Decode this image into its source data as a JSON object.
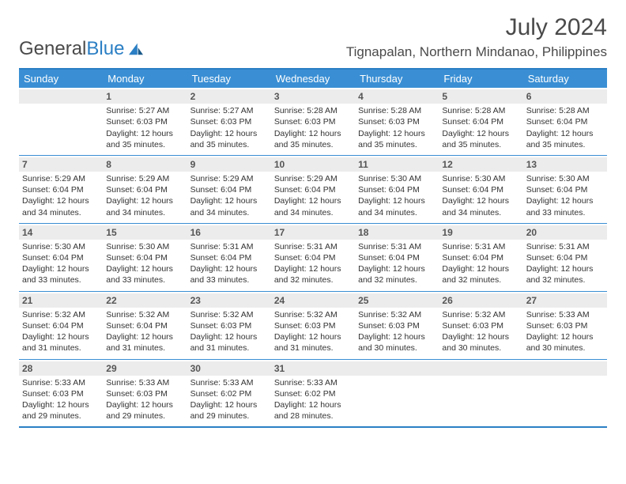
{
  "logo": {
    "text_grey": "General",
    "text_blue": "Blue"
  },
  "title": "July 2024",
  "location": "Tignapalan, Northern Mindanao, Philippines",
  "colors": {
    "header_bar": "#3a8fd4",
    "border": "#2b7fc4",
    "daynum_bg": "#ececec",
    "text": "#333333",
    "title_text": "#4a4a4a"
  },
  "weekdays": [
    "Sunday",
    "Monday",
    "Tuesday",
    "Wednesday",
    "Thursday",
    "Friday",
    "Saturday"
  ],
  "weeks": [
    [
      {
        "day": "",
        "sunrise": "",
        "sunset": "",
        "daylight": ""
      },
      {
        "day": "1",
        "sunrise": "Sunrise: 5:27 AM",
        "sunset": "Sunset: 6:03 PM",
        "daylight": "Daylight: 12 hours and 35 minutes."
      },
      {
        "day": "2",
        "sunrise": "Sunrise: 5:27 AM",
        "sunset": "Sunset: 6:03 PM",
        "daylight": "Daylight: 12 hours and 35 minutes."
      },
      {
        "day": "3",
        "sunrise": "Sunrise: 5:28 AM",
        "sunset": "Sunset: 6:03 PM",
        "daylight": "Daylight: 12 hours and 35 minutes."
      },
      {
        "day": "4",
        "sunrise": "Sunrise: 5:28 AM",
        "sunset": "Sunset: 6:03 PM",
        "daylight": "Daylight: 12 hours and 35 minutes."
      },
      {
        "day": "5",
        "sunrise": "Sunrise: 5:28 AM",
        "sunset": "Sunset: 6:04 PM",
        "daylight": "Daylight: 12 hours and 35 minutes."
      },
      {
        "day": "6",
        "sunrise": "Sunrise: 5:28 AM",
        "sunset": "Sunset: 6:04 PM",
        "daylight": "Daylight: 12 hours and 35 minutes."
      }
    ],
    [
      {
        "day": "7",
        "sunrise": "Sunrise: 5:29 AM",
        "sunset": "Sunset: 6:04 PM",
        "daylight": "Daylight: 12 hours and 34 minutes."
      },
      {
        "day": "8",
        "sunrise": "Sunrise: 5:29 AM",
        "sunset": "Sunset: 6:04 PM",
        "daylight": "Daylight: 12 hours and 34 minutes."
      },
      {
        "day": "9",
        "sunrise": "Sunrise: 5:29 AM",
        "sunset": "Sunset: 6:04 PM",
        "daylight": "Daylight: 12 hours and 34 minutes."
      },
      {
        "day": "10",
        "sunrise": "Sunrise: 5:29 AM",
        "sunset": "Sunset: 6:04 PM",
        "daylight": "Daylight: 12 hours and 34 minutes."
      },
      {
        "day": "11",
        "sunrise": "Sunrise: 5:30 AM",
        "sunset": "Sunset: 6:04 PM",
        "daylight": "Daylight: 12 hours and 34 minutes."
      },
      {
        "day": "12",
        "sunrise": "Sunrise: 5:30 AM",
        "sunset": "Sunset: 6:04 PM",
        "daylight": "Daylight: 12 hours and 34 minutes."
      },
      {
        "day": "13",
        "sunrise": "Sunrise: 5:30 AM",
        "sunset": "Sunset: 6:04 PM",
        "daylight": "Daylight: 12 hours and 33 minutes."
      }
    ],
    [
      {
        "day": "14",
        "sunrise": "Sunrise: 5:30 AM",
        "sunset": "Sunset: 6:04 PM",
        "daylight": "Daylight: 12 hours and 33 minutes."
      },
      {
        "day": "15",
        "sunrise": "Sunrise: 5:30 AM",
        "sunset": "Sunset: 6:04 PM",
        "daylight": "Daylight: 12 hours and 33 minutes."
      },
      {
        "day": "16",
        "sunrise": "Sunrise: 5:31 AM",
        "sunset": "Sunset: 6:04 PM",
        "daylight": "Daylight: 12 hours and 33 minutes."
      },
      {
        "day": "17",
        "sunrise": "Sunrise: 5:31 AM",
        "sunset": "Sunset: 6:04 PM",
        "daylight": "Daylight: 12 hours and 32 minutes."
      },
      {
        "day": "18",
        "sunrise": "Sunrise: 5:31 AM",
        "sunset": "Sunset: 6:04 PM",
        "daylight": "Daylight: 12 hours and 32 minutes."
      },
      {
        "day": "19",
        "sunrise": "Sunrise: 5:31 AM",
        "sunset": "Sunset: 6:04 PM",
        "daylight": "Daylight: 12 hours and 32 minutes."
      },
      {
        "day": "20",
        "sunrise": "Sunrise: 5:31 AM",
        "sunset": "Sunset: 6:04 PM",
        "daylight": "Daylight: 12 hours and 32 minutes."
      }
    ],
    [
      {
        "day": "21",
        "sunrise": "Sunrise: 5:32 AM",
        "sunset": "Sunset: 6:04 PM",
        "daylight": "Daylight: 12 hours and 31 minutes."
      },
      {
        "day": "22",
        "sunrise": "Sunrise: 5:32 AM",
        "sunset": "Sunset: 6:04 PM",
        "daylight": "Daylight: 12 hours and 31 minutes."
      },
      {
        "day": "23",
        "sunrise": "Sunrise: 5:32 AM",
        "sunset": "Sunset: 6:03 PM",
        "daylight": "Daylight: 12 hours and 31 minutes."
      },
      {
        "day": "24",
        "sunrise": "Sunrise: 5:32 AM",
        "sunset": "Sunset: 6:03 PM",
        "daylight": "Daylight: 12 hours and 31 minutes."
      },
      {
        "day": "25",
        "sunrise": "Sunrise: 5:32 AM",
        "sunset": "Sunset: 6:03 PM",
        "daylight": "Daylight: 12 hours and 30 minutes."
      },
      {
        "day": "26",
        "sunrise": "Sunrise: 5:32 AM",
        "sunset": "Sunset: 6:03 PM",
        "daylight": "Daylight: 12 hours and 30 minutes."
      },
      {
        "day": "27",
        "sunrise": "Sunrise: 5:33 AM",
        "sunset": "Sunset: 6:03 PM",
        "daylight": "Daylight: 12 hours and 30 minutes."
      }
    ],
    [
      {
        "day": "28",
        "sunrise": "Sunrise: 5:33 AM",
        "sunset": "Sunset: 6:03 PM",
        "daylight": "Daylight: 12 hours and 29 minutes."
      },
      {
        "day": "29",
        "sunrise": "Sunrise: 5:33 AM",
        "sunset": "Sunset: 6:03 PM",
        "daylight": "Daylight: 12 hours and 29 minutes."
      },
      {
        "day": "30",
        "sunrise": "Sunrise: 5:33 AM",
        "sunset": "Sunset: 6:02 PM",
        "daylight": "Daylight: 12 hours and 29 minutes."
      },
      {
        "day": "31",
        "sunrise": "Sunrise: 5:33 AM",
        "sunset": "Sunset: 6:02 PM",
        "daylight": "Daylight: 12 hours and 28 minutes."
      },
      {
        "day": "",
        "sunrise": "",
        "sunset": "",
        "daylight": ""
      },
      {
        "day": "",
        "sunrise": "",
        "sunset": "",
        "daylight": ""
      },
      {
        "day": "",
        "sunrise": "",
        "sunset": "",
        "daylight": ""
      }
    ]
  ]
}
